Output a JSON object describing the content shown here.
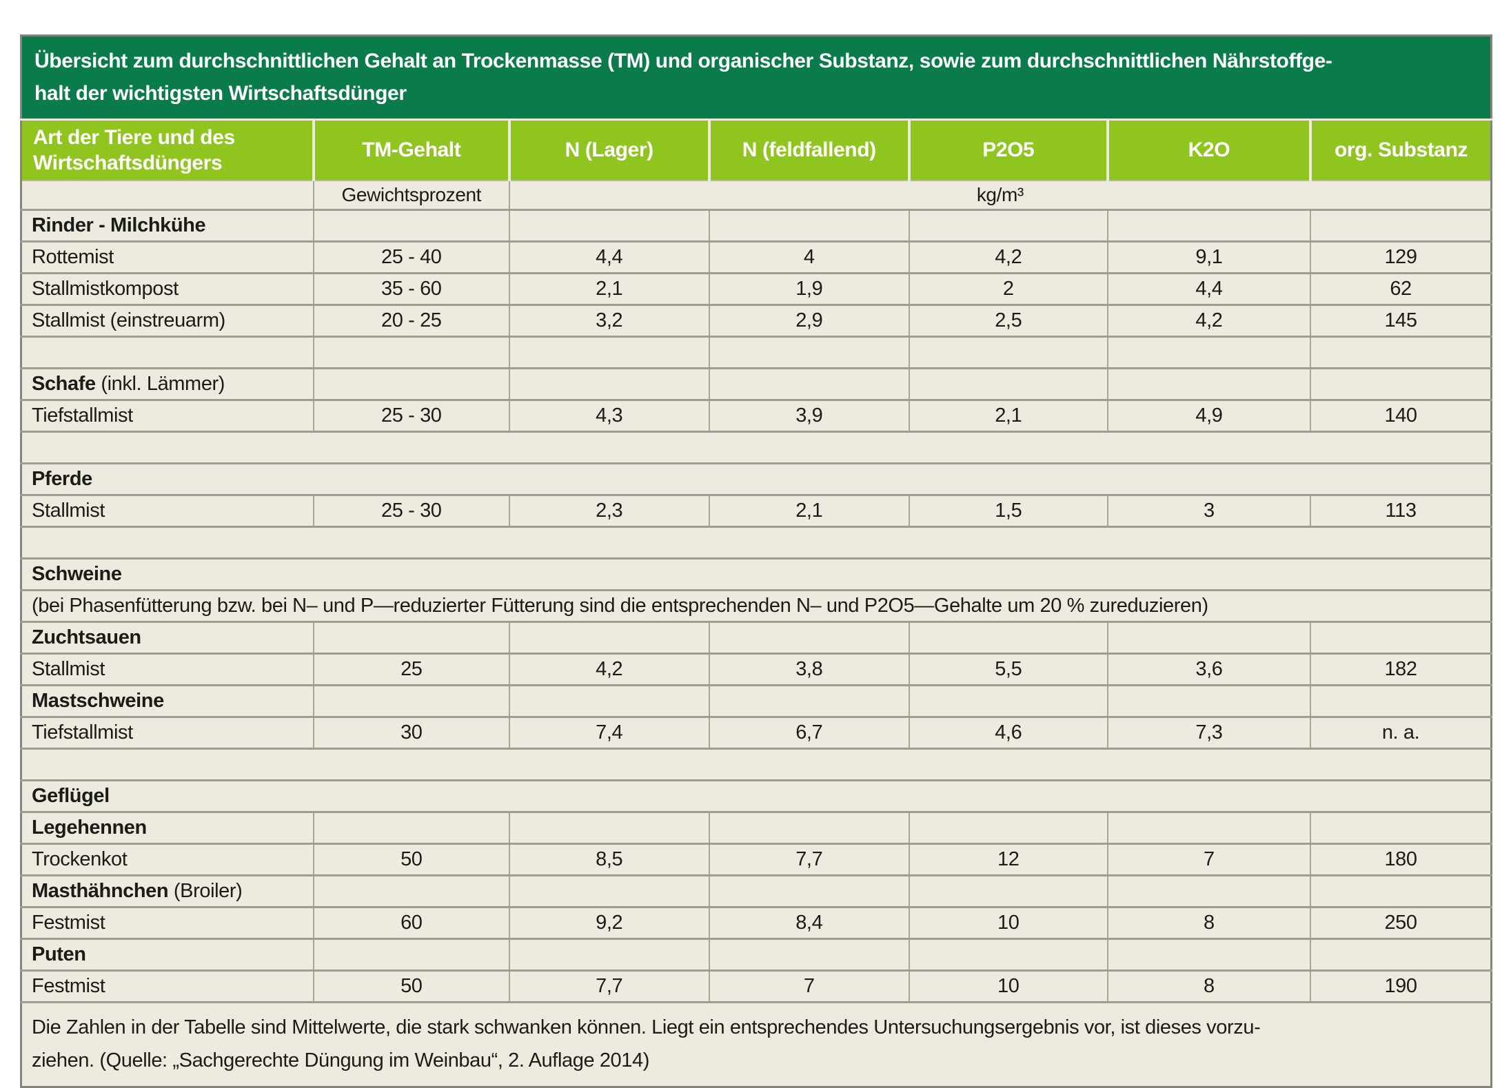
{
  "title": {
    "line1": "Übersicht zum durchschnittlichen Gehalt an Trockenmasse (TM) und organischer Substanz, sowie zum durchschnittlichen Nährstoffge-",
    "line2": "halt der wichtigsten Wirtschaftsdünger"
  },
  "columns": [
    "Art der Tiere und des Wirtschaftsdüngers",
    "TM-Gehalt",
    "N (Lager)",
    "N (feldfallend)",
    "P2O5",
    "K2O",
    "org. Substanz"
  ],
  "units": {
    "tm": "Gewichtsprozent",
    "nutrients": "kg/m³"
  },
  "rows": [
    {
      "type": "group",
      "label": "Rinder - Milchkühe",
      "suffix": ""
    },
    {
      "type": "data",
      "label": "Rottemist",
      "values": [
        "25 - 40",
        "4,4",
        "4",
        "4,2",
        "9,1",
        "129"
      ]
    },
    {
      "type": "data",
      "label": "Stallmistkompost",
      "values": [
        "35 - 60",
        "2,1",
        "1,9",
        "2",
        "4,4",
        "62"
      ]
    },
    {
      "type": "data",
      "label": "Stallmist (einstreuarm)",
      "values": [
        "20 - 25",
        "3,2",
        "2,9",
        "2,5",
        "4,2",
        "145"
      ]
    },
    {
      "type": "spacer-cells"
    },
    {
      "type": "group",
      "label": "Schafe",
      "suffix": " (inkl. Lämmer)"
    },
    {
      "type": "data",
      "label": "Tiefstallmist",
      "values": [
        "25 - 30",
        "4,3",
        "3,9",
        "2,1",
        "4,9",
        "140"
      ]
    },
    {
      "type": "spacer-full"
    },
    {
      "type": "full",
      "label": "Pferde"
    },
    {
      "type": "data",
      "label": "Stallmist",
      "values": [
        "25 - 30",
        "2,3",
        "2,1",
        "1,5",
        "3",
        "113"
      ]
    },
    {
      "type": "spacer-full"
    },
    {
      "type": "full",
      "label": "Schweine"
    },
    {
      "type": "note",
      "text": "(bei Phasenfütterung bzw. bei N– und P—reduzierter Fütterung sind die entsprechenden N– und P2O5—Gehalte um 20 % zureduzieren)"
    },
    {
      "type": "group",
      "label": "Zuchtsauen",
      "suffix": ""
    },
    {
      "type": "data",
      "label": "Stallmist",
      "values": [
        "25",
        "4,2",
        "3,8",
        "5,5",
        "3,6",
        "182"
      ]
    },
    {
      "type": "group",
      "label": "Mastschweine",
      "suffix": ""
    },
    {
      "type": "data",
      "label": "Tiefstallmist",
      "values": [
        "30",
        "7,4",
        "6,7",
        "4,6",
        "7,3",
        "n. a."
      ]
    },
    {
      "type": "spacer-full"
    },
    {
      "type": "full",
      "label": "Geflügel"
    },
    {
      "type": "group",
      "label": "Legehennen",
      "suffix": ""
    },
    {
      "type": "data",
      "label": "Trockenkot",
      "values": [
        "50",
        "8,5",
        "7,7",
        "12",
        "7",
        "180"
      ]
    },
    {
      "type": "group",
      "label": "Masthähnchen",
      "suffix": " (Broiler)"
    },
    {
      "type": "data",
      "label": "Festmist",
      "values": [
        "60",
        "9,2",
        "8,4",
        "10",
        "8",
        "250"
      ]
    },
    {
      "type": "group",
      "label": "Puten",
      "suffix": ""
    },
    {
      "type": "data",
      "label": "Festmist",
      "values": [
        "50",
        "7,7",
        "7",
        "10",
        "8",
        "190"
      ]
    }
  ],
  "footer": {
    "line1": "Die Zahlen in der Tabelle sind Mittelwerte, die stark schwanken können. Liegt ein entsprechendes Untersuchungsergebnis vor, ist dieses vorzu-",
    "line2": "ziehen. (Quelle: „Sachgerechte Düngung im Weinbau“, 2. Auflage 2014)"
  },
  "colors": {
    "title_band": "#0a7b4b",
    "header_band": "#90c41e",
    "table_background": "#eeeae0",
    "grid_line": "#9d9c95"
  }
}
